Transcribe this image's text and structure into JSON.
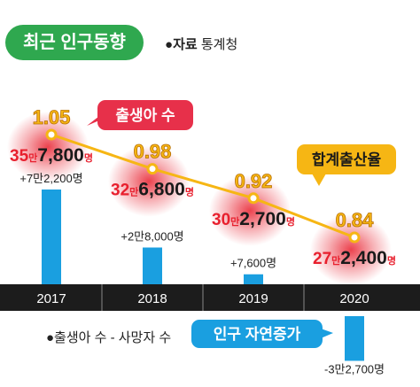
{
  "header": {
    "title": "최근 인구동향",
    "source_prefix": "●",
    "source_label": "자료",
    "source_value": "통계청"
  },
  "legend": {
    "text": "●출생아 수 - 사망자 수"
  },
  "colors": {
    "title_bg": "#2fa84f",
    "bar": "#1a9fe0",
    "birth_label_bg": "#e7304a",
    "tfr_label_bg": "#f6b614",
    "natural_label_bg": "#1a9fe0",
    "timeline": "#1c1c1c",
    "tfr_line": "#f6b614",
    "births_text": "#e8202e",
    "glow": "#e8202e"
  },
  "chart_data": {
    "type": "bar",
    "categories": [
      "2017",
      "2018",
      "2019",
      "2020"
    ],
    "series": [
      {
        "name": "인구 자연증가",
        "values": [
          72200,
          28000,
          7600,
          -32700
        ],
        "labels": [
          "+7만2,200명",
          "+2만8,000명",
          "+7,600명",
          "-3만2,700명"
        ]
      },
      {
        "name": "출생아 수",
        "values": [
          357800,
          326800,
          302700,
          272400
        ],
        "labels": [
          {
            "man": "35",
            "man_unit": "만",
            "rest": "7,800",
            "unit": "명"
          },
          {
            "man": "32",
            "man_unit": "만",
            "rest": "6,800",
            "unit": "명"
          },
          {
            "man": "30",
            "man_unit": "만",
            "rest": "2,700",
            "unit": "명"
          },
          {
            "man": "27",
            "man_unit": "만",
            "rest": "2,400",
            "unit": "명"
          }
        ]
      },
      {
        "name": "합계출산율",
        "values": [
          1.05,
          0.98,
          0.92,
          0.84
        ],
        "labels": [
          "1.05",
          "0.98",
          "0.92",
          "0.84"
        ]
      }
    ],
    "callouts": {
      "births": "출생아 수",
      "tfr": "합계출산율",
      "natural": "인구 자연증가"
    }
  }
}
